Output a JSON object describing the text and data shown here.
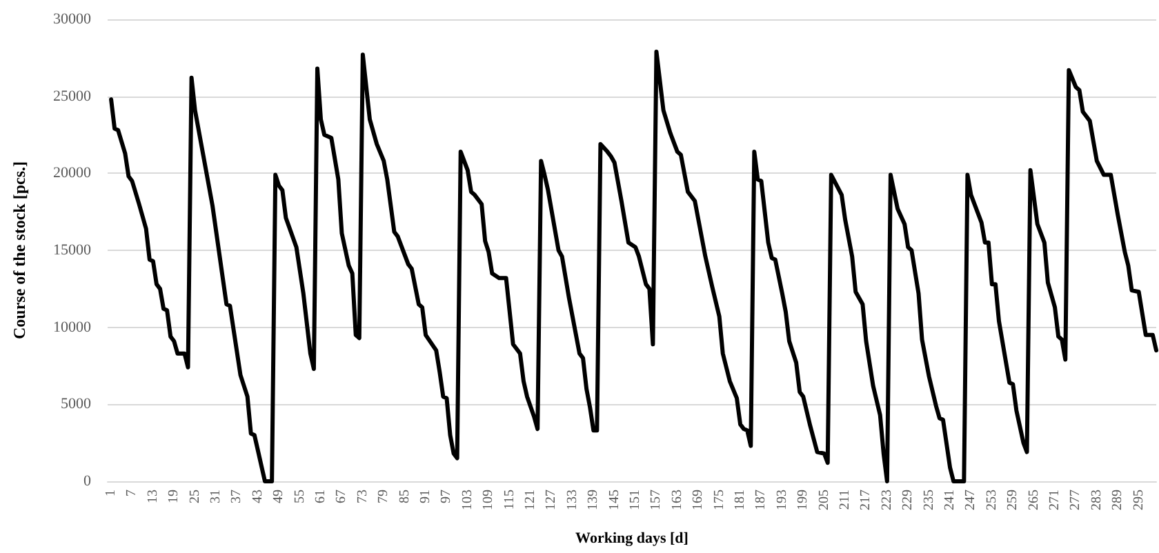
{
  "chart_data": {
    "type": "line",
    "xlabel": "Working days [d]",
    "ylabel": "Course of the stock [pcs.]",
    "xlim": [
      0,
      300
    ],
    "xticks": [
      1,
      7,
      13,
      19,
      25,
      31,
      37,
      43,
      49,
      55,
      61,
      67,
      73,
      79,
      85,
      91,
      97,
      103,
      109,
      115,
      121,
      127,
      133,
      139,
      145,
      151,
      157,
      163,
      169,
      175,
      181,
      187,
      193,
      199,
      205,
      211,
      217,
      223,
      229,
      235,
      241,
      247,
      253,
      259,
      265,
      271,
      277,
      283,
      289,
      295
    ],
    "ylim": [
      0,
      30000
    ],
    "yticks": [
      0,
      5000,
      10000,
      15000,
      20000,
      25000,
      30000
    ],
    "grid": "y",
    "marker": "none",
    "line_style": "solid",
    "series": [
      {
        "color": "#000000",
        "x": [
          1,
          2,
          3,
          5,
          6,
          7,
          9,
          11,
          12,
          13,
          14,
          15,
          16,
          17,
          18,
          19,
          20,
          22,
          23,
          24,
          25,
          30,
          34,
          35,
          38,
          40,
          41,
          42,
          45,
          47,
          48,
          49,
          50,
          51,
          54,
          56,
          58,
          59,
          60,
          61,
          62,
          64,
          66,
          67,
          69,
          70,
          71,
          72,
          73,
          75,
          77,
          79,
          80,
          82,
          83,
          86,
          87,
          89,
          90,
          91,
          94,
          95,
          96,
          97,
          98,
          99,
          100,
          101,
          103,
          104,
          105,
          107,
          108,
          109,
          110,
          112,
          114,
          116,
          118,
          119,
          120,
          122,
          123,
          124,
          125,
          126,
          129,
          130,
          132,
          133,
          135,
          136,
          137,
          138,
          139,
          140,
          141,
          143,
          144,
          145,
          147,
          149,
          151,
          152,
          154,
          155,
          156,
          157,
          159,
          161,
          163,
          164,
          166,
          168,
          171,
          173,
          175,
          176,
          178,
          180,
          181,
          182,
          183,
          184,
          185,
          186,
          187,
          189,
          190,
          191,
          193,
          194,
          195,
          197,
          198,
          199,
          201,
          203,
          205,
          206,
          207,
          210,
          211,
          213,
          214,
          216,
          217,
          219,
          221,
          222,
          223,
          224,
          226,
          228,
          229,
          230,
          232,
          233,
          235,
          237,
          238,
          239,
          241,
          242,
          245,
          246,
          247,
          250,
          251,
          252,
          253,
          254,
          255,
          258,
          259,
          260,
          262,
          263,
          264,
          266,
          268,
          269,
          271,
          272,
          273,
          274,
          275,
          277,
          278,
          279,
          281,
          283,
          285,
          287,
          289,
          291,
          292,
          293,
          295,
          297,
          299,
          300
        ],
        "values": [
          24800,
          22900,
          22800,
          21300,
          19800,
          19500,
          18000,
          16400,
          14400,
          14300,
          12800,
          12500,
          11200,
          11100,
          9400,
          9100,
          8300,
          8300,
          7400,
          26200,
          24100,
          17900,
          11500,
          11400,
          6900,
          5500,
          3100,
          3000,
          0,
          0,
          19900,
          19200,
          18900,
          17100,
          15200,
          12200,
          8300,
          7300,
          26800,
          23500,
          22500,
          22300,
          19600,
          16100,
          14000,
          13500,
          9500,
          9300,
          27700,
          23500,
          21900,
          20800,
          19600,
          16200,
          15900,
          14100,
          13800,
          11500,
          11300,
          9500,
          8500,
          7100,
          5500,
          5400,
          3000,
          1800,
          1500,
          21400,
          20200,
          18800,
          18600,
          18000,
          15600,
          14900,
          13500,
          13200,
          13200,
          8900,
          8300,
          6500,
          5500,
          4200,
          3400,
          20800,
          19900,
          18900,
          15000,
          14600,
          11900,
          10700,
          8300,
          8000,
          6000,
          4800,
          3300,
          3300,
          21900,
          21400,
          21100,
          20700,
          18200,
          15500,
          15200,
          14600,
          12800,
          12500,
          8900,
          27900,
          24100,
          22600,
          21400,
          21200,
          18800,
          18200,
          14600,
          12600,
          10700,
          8300,
          6500,
          5400,
          3700,
          3400,
          3300,
          2300,
          21400,
          19600,
          19500,
          15500,
          14500,
          14400,
          12200,
          11000,
          9100,
          7700,
          5800,
          5500,
          3600,
          1900,
          1800,
          1200,
          19900,
          18600,
          17000,
          14600,
          12300,
          11500,
          9100,
          6200,
          4300,
          1800,
          0,
          19900,
          17700,
          16700,
          15200,
          15000,
          12200,
          9200,
          6800,
          4900,
          4100,
          4000,
          900,
          0,
          0,
          19900,
          18600,
          16800,
          15500,
          15500,
          12800,
          12800,
          10400,
          6400,
          6300,
          4600,
          2500,
          1900,
          20200,
          16700,
          15500,
          12900,
          11300,
          9400,
          9200,
          7900,
          26700,
          25600,
          25400,
          24000,
          23400,
          20800,
          19900,
          19900,
          17300,
          14900,
          14000,
          12400,
          12300,
          9500,
          9500,
          8500
        ]
      }
    ]
  }
}
